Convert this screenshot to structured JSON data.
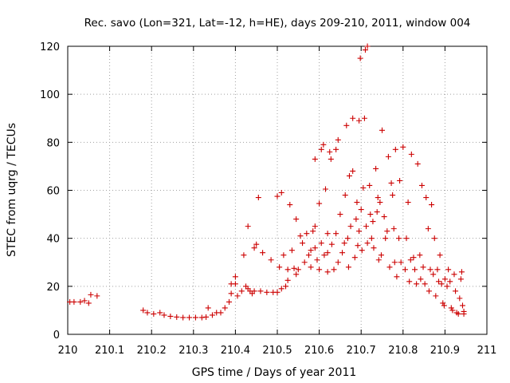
{
  "chart_data": {
    "type": "scatter",
    "title": "Rec. savo (Lon=321, Lat=-12, h=HE), days 209-210, 2011, window 004",
    "xlabel": "GPS time / Days of year 2011",
    "ylabel": "STEC from uqrg / TECUs",
    "xlim": [
      210,
      211
    ],
    "ylim": [
      0,
      120
    ],
    "x_ticks": [
      210,
      210.1,
      210.2,
      210.3,
      210.4,
      210.5,
      210.6,
      210.7,
      210.8,
      210.9,
      211
    ],
    "x_tick_labels": [
      "210",
      "210.1",
      "210.2",
      "210.3",
      "210.4",
      "210.5",
      "210.6",
      "210.7",
      "210.8",
      "210.9",
      "211"
    ],
    "y_ticks": [
      0,
      20,
      40,
      60,
      80,
      100,
      120
    ],
    "y_tick_labels": [
      "0",
      "20",
      "40",
      "60",
      "80",
      "100",
      "120"
    ],
    "grid": true,
    "marker": "+",
    "color": "#cc0000",
    "series": [
      {
        "name": "STEC",
        "points": [
          [
            210.005,
            13.5
          ],
          [
            210.015,
            13.5
          ],
          [
            210.03,
            13.5
          ],
          [
            210.04,
            14
          ],
          [
            210.05,
            13
          ],
          [
            210.055,
            16.5
          ],
          [
            210.07,
            16
          ],
          [
            210.18,
            10
          ],
          [
            210.19,
            9
          ],
          [
            210.205,
            8.5
          ],
          [
            210.22,
            9
          ],
          [
            210.23,
            8
          ],
          [
            210.245,
            7.5
          ],
          [
            210.26,
            7.2
          ],
          [
            210.275,
            7
          ],
          [
            210.29,
            7
          ],
          [
            210.305,
            7
          ],
          [
            210.32,
            7
          ],
          [
            210.33,
            7.2
          ],
          [
            210.335,
            11
          ],
          [
            210.345,
            8
          ],
          [
            210.355,
            9
          ],
          [
            210.365,
            9
          ],
          [
            210.375,
            11
          ],
          [
            210.385,
            13.5
          ],
          [
            210.39,
            17
          ],
          [
            210.39,
            21
          ],
          [
            210.4,
            21
          ],
          [
            210.4,
            24
          ],
          [
            210.405,
            16
          ],
          [
            210.415,
            18
          ],
          [
            210.42,
            33
          ],
          [
            210.425,
            20
          ],
          [
            210.43,
            19
          ],
          [
            210.435,
            18
          ],
          [
            210.44,
            17
          ],
          [
            210.445,
            18
          ],
          [
            210.43,
            45
          ],
          [
            210.445,
            36
          ],
          [
            210.45,
            37.5
          ],
          [
            210.455,
            57
          ],
          [
            210.46,
            18
          ],
          [
            210.465,
            34
          ],
          [
            210.475,
            17.5
          ],
          [
            210.485,
            31
          ],
          [
            210.49,
            17.5
          ],
          [
            210.5,
            17.5
          ],
          [
            210.505,
            28
          ],
          [
            210.5,
            57.5
          ],
          [
            210.51,
            59
          ],
          [
            210.51,
            19
          ],
          [
            210.515,
            33
          ],
          [
            210.52,
            20
          ],
          [
            210.525,
            27
          ],
          [
            210.525,
            22.5
          ],
          [
            210.53,
            54
          ],
          [
            210.535,
            35
          ],
          [
            210.54,
            27.5
          ],
          [
            210.545,
            25
          ],
          [
            210.545,
            48
          ],
          [
            210.55,
            27
          ],
          [
            210.555,
            41
          ],
          [
            210.56,
            38
          ],
          [
            210.565,
            30
          ],
          [
            210.57,
            42
          ],
          [
            210.575,
            33
          ],
          [
            210.58,
            35
          ],
          [
            210.58,
            28
          ],
          [
            210.585,
            43
          ],
          [
            210.59,
            36
          ],
          [
            210.59,
            45
          ],
          [
            210.59,
            73
          ],
          [
            210.595,
            31
          ],
          [
            210.6,
            27
          ],
          [
            210.6,
            54.5
          ],
          [
            210.605,
            38
          ],
          [
            210.605,
            77
          ],
          [
            210.61,
            79
          ],
          [
            210.612,
            33
          ],
          [
            210.615,
            60.5
          ],
          [
            210.62,
            34
          ],
          [
            210.62,
            42
          ],
          [
            210.62,
            26
          ],
          [
            210.625,
            76
          ],
          [
            210.628,
            73
          ],
          [
            210.63,
            37.5
          ],
          [
            210.635,
            27
          ],
          [
            210.64,
            42
          ],
          [
            210.64,
            77
          ],
          [
            210.645,
            81
          ],
          [
            210.645,
            30
          ],
          [
            210.65,
            50
          ],
          [
            210.655,
            34
          ],
          [
            210.66,
            38
          ],
          [
            210.662,
            58
          ],
          [
            210.665,
            87
          ],
          [
            210.668,
            40
          ],
          [
            210.67,
            28
          ],
          [
            210.672,
            66
          ],
          [
            210.675,
            45
          ],
          [
            210.68,
            68
          ],
          [
            210.68,
            90
          ],
          [
            210.685,
            32
          ],
          [
            210.688,
            48
          ],
          [
            210.69,
            55
          ],
          [
            210.692,
            37
          ],
          [
            210.695,
            43
          ],
          [
            210.695,
            89
          ],
          [
            210.698,
            115
          ],
          [
            210.7,
            52
          ],
          [
            210.702,
            35
          ],
          [
            210.705,
            61
          ],
          [
            210.708,
            90
          ],
          [
            210.71,
            118.5
          ],
          [
            210.712,
            45
          ],
          [
            210.715,
            38
          ],
          [
            210.715,
            120
          ],
          [
            210.72,
            62
          ],
          [
            210.722,
            50
          ],
          [
            210.725,
            40
          ],
          [
            210.728,
            47
          ],
          [
            210.73,
            36
          ],
          [
            210.735,
            69
          ],
          [
            210.738,
            51
          ],
          [
            210.74,
            57
          ],
          [
            210.742,
            31
          ],
          [
            210.745,
            55
          ],
          [
            210.748,
            33
          ],
          [
            210.75,
            85
          ],
          [
            210.755,
            49
          ],
          [
            210.758,
            40
          ],
          [
            210.762,
            43
          ],
          [
            210.765,
            74
          ],
          [
            210.768,
            28
          ],
          [
            210.772,
            63
          ],
          [
            210.775,
            58
          ],
          [
            210.778,
            44
          ],
          [
            210.78,
            30
          ],
          [
            210.782,
            77
          ],
          [
            210.785,
            24
          ],
          [
            210.79,
            40
          ],
          [
            210.792,
            64
          ],
          [
            210.795,
            30
          ],
          [
            210.8,
            78
          ],
          [
            210.805,
            27
          ],
          [
            210.808,
            40
          ],
          [
            210.812,
            55
          ],
          [
            210.815,
            22
          ],
          [
            210.818,
            31
          ],
          [
            210.82,
            75
          ],
          [
            210.825,
            32
          ],
          [
            210.828,
            27
          ],
          [
            210.832,
            21
          ],
          [
            210.835,
            71
          ],
          [
            210.84,
            33
          ],
          [
            210.842,
            23
          ],
          [
            210.845,
            62
          ],
          [
            210.848,
            28
          ],
          [
            210.852,
            21
          ],
          [
            210.855,
            57
          ],
          [
            210.86,
            44
          ],
          [
            210.862,
            18
          ],
          [
            210.865,
            27
          ],
          [
            210.868,
            54
          ],
          [
            210.872,
            25
          ],
          [
            210.875,
            40
          ],
          [
            210.878,
            16
          ],
          [
            210.882,
            27
          ],
          [
            210.885,
            22
          ],
          [
            210.888,
            33
          ],
          [
            210.892,
            21
          ],
          [
            210.895,
            13
          ],
          [
            210.898,
            12
          ],
          [
            210.9,
            23
          ],
          [
            210.905,
            20
          ],
          [
            210.908,
            27
          ],
          [
            210.912,
            22
          ],
          [
            210.915,
            11
          ],
          [
            210.918,
            10
          ],
          [
            210.922,
            25
          ],
          [
            210.925,
            18
          ],
          [
            210.928,
            9
          ],
          [
            210.932,
            8.5
          ],
          [
            210.935,
            15
          ],
          [
            210.938,
            23
          ],
          [
            210.94,
            26
          ],
          [
            210.942,
            12
          ],
          [
            210.945,
            9.5
          ],
          [
            210.945,
            8.5
          ]
        ]
      }
    ]
  }
}
